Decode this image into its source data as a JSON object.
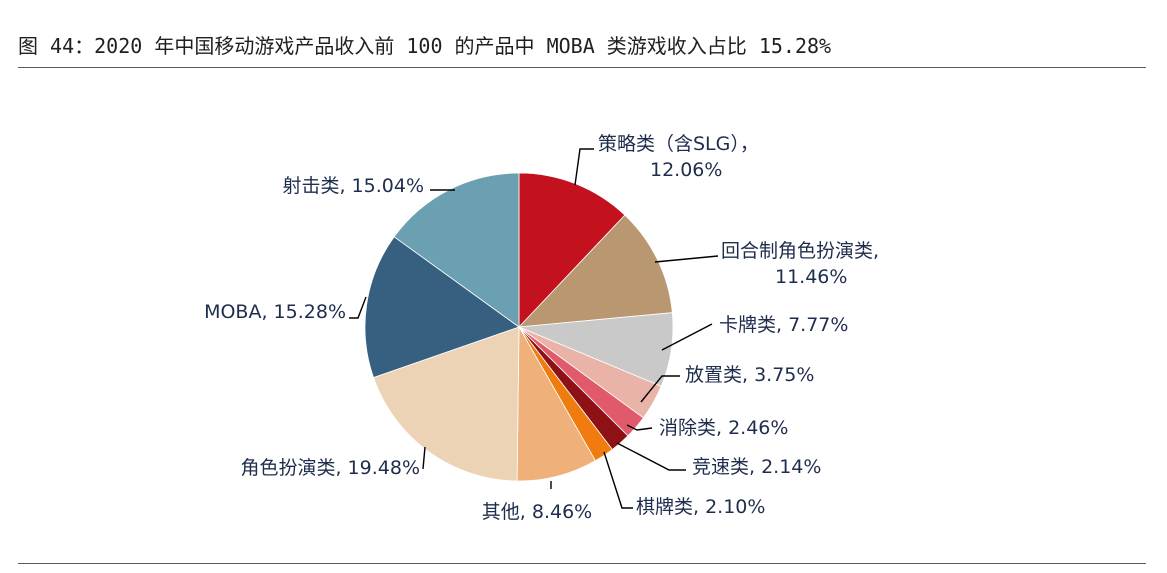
{
  "figure": {
    "title": "图 44：2020 年中国移动游戏产品收入前 100 的产品中 MOBA 类游戏收入占比 15.28%"
  },
  "chart_data": {
    "type": "pie",
    "title": "",
    "start_angle_deg": 90,
    "direction": "clockwise",
    "slices": [
      {
        "label": "策略类（含SLG），",
        "value": 12.06,
        "value_text": "12.06%",
        "color": "#c3111e"
      },
      {
        "label": "回合制角色扮演类,",
        "value": 11.46,
        "value_text": "11.46%",
        "color": "#b89771"
      },
      {
        "label": "卡牌类, ",
        "value": 7.77,
        "value_text": "7.77%",
        "color": "#c9c9c9"
      },
      {
        "label": "放置类, ",
        "value": 3.75,
        "value_text": "3.75%",
        "color": "#e9b3a8"
      },
      {
        "label": "消除类, ",
        "value": 2.46,
        "value_text": "2.46%",
        "color": "#e05a6b"
      },
      {
        "label": "竞速类, ",
        "value": 2.14,
        "value_text": "2.14%",
        "color": "#8e1116"
      },
      {
        "label": "棋牌类, ",
        "value": 2.1,
        "value_text": "2.10%",
        "color": "#f07c10"
      },
      {
        "label": "其他, ",
        "value": 8.46,
        "value_text": "8.46%",
        "color": "#efb07a"
      },
      {
        "label": "角色扮演类, ",
        "value": 19.48,
        "value_text": "19.48%",
        "color": "#ecd3b5"
      },
      {
        "label": "MOBA, ",
        "value": 15.28,
        "value_text": "15.28%",
        "color": "#365f80"
      },
      {
        "label": "射击类, ",
        "value": 15.04,
        "value_text": "15.04%",
        "color": "#6aa0b2"
      }
    ]
  }
}
